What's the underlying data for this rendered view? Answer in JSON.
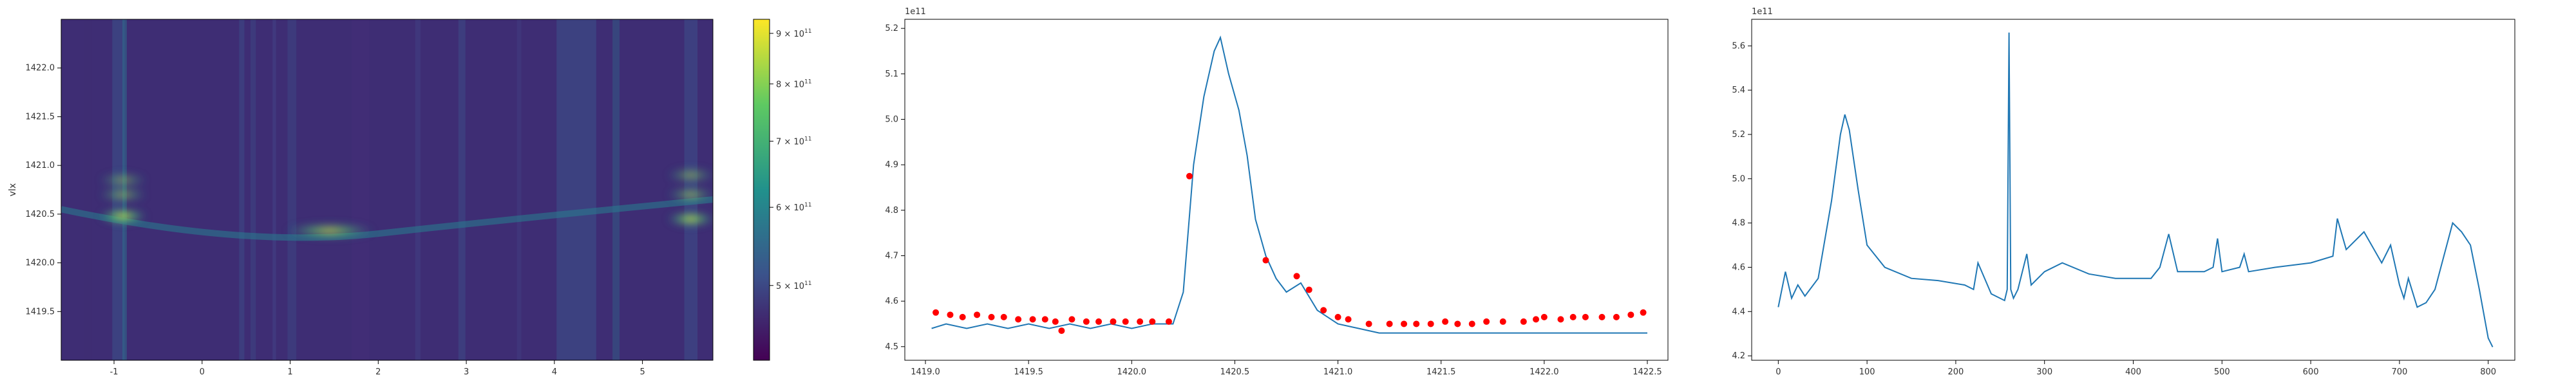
{
  "chart_data": [
    {
      "type": "heatmap",
      "ylabel": "vlx",
      "xlabel": "",
      "xlim": [
        -1.6,
        5.8
      ],
      "ylim": [
        1419.0,
        1422.5
      ],
      "x_ticks": [
        "-1",
        "0",
        "1",
        "2",
        "3",
        "4",
        "5"
      ],
      "y_ticks": [
        "1419.5",
        "1420.0",
        "1420.5",
        "1421.0",
        "1421.5",
        "1422.0"
      ],
      "colorbar": {
        "scale": "log",
        "range": [
          420000000000.0,
          930000000000.0
        ],
        "ticks": [
          {
            "value": 500000000000.0,
            "mant": "5",
            "exp": "11"
          },
          {
            "value": 600000000000.0,
            "mant": "6",
            "exp": "11"
          },
          {
            "value": 700000000000.0,
            "mant": "7",
            "exp": "11"
          },
          {
            "value": 800000000000.0,
            "mant": "8",
            "exp": "11"
          },
          {
            "value": 900000000000.0,
            "mant": "9",
            "exp": "11"
          }
        ],
        "times": "×"
      },
      "features": [
        {
          "x": -0.9,
          "y": 1420.48,
          "intensity": 0.95
        },
        {
          "x": -0.9,
          "y": 1420.7,
          "intensity": 0.55
        },
        {
          "x": -0.9,
          "y": 1420.85,
          "intensity": 0.5
        },
        {
          "x": 1.45,
          "y": 1420.33,
          "intensity": 0.8
        },
        {
          "x": 5.55,
          "y": 1420.45,
          "intensity": 0.9
        },
        {
          "x": 5.55,
          "y": 1420.7,
          "intensity": 0.6
        },
        {
          "x": 5.55,
          "y": 1420.9,
          "intensity": 0.55
        }
      ],
      "colors": {
        "low": "#440154",
        "mid": "#21918c",
        "high": "#fde725"
      }
    },
    {
      "type": "line",
      "offset_label": "1e11",
      "xlim": [
        1418.9,
        1422.6
      ],
      "ylim": [
        4.47,
        5.22
      ],
      "x_ticks": [
        "1419.0",
        "1419.5",
        "1420.0",
        "1420.5",
        "1421.0",
        "1421.5",
        "1422.0",
        "1422.5"
      ],
      "y_ticks": [
        "4.5",
        "4.6",
        "4.7",
        "4.8",
        "4.9",
        "5.0",
        "5.1",
        "5.2"
      ],
      "series": [
        {
          "x": [
            1419.03,
            1419.1,
            1419.2,
            1419.3,
            1419.4,
            1419.5,
            1419.6,
            1419.7,
            1419.8,
            1419.9,
            1420.0,
            1420.1,
            1420.2,
            1420.25,
            1420.3,
            1420.35,
            1420.4,
            1420.43,
            1420.47,
            1420.52,
            1420.56,
            1420.6,
            1420.65,
            1420.7,
            1420.75,
            1420.82,
            1420.9,
            1421.0,
            1421.1,
            1421.2,
            1421.3,
            1421.4,
            1421.5,
            1421.6,
            1421.7,
            1421.8,
            1421.9,
            1422.0,
            1422.1,
            1422.2,
            1422.3,
            1422.4,
            1422.5
          ],
          "y": [
            4.54,
            4.55,
            4.54,
            4.55,
            4.54,
            4.55,
            4.54,
            4.55,
            4.54,
            4.55,
            4.54,
            4.55,
            4.55,
            4.62,
            4.9,
            5.05,
            5.15,
            5.18,
            5.1,
            5.02,
            4.92,
            4.78,
            4.7,
            4.65,
            4.62,
            4.64,
            4.58,
            4.55,
            4.54,
            4.53,
            4.53,
            4.53,
            4.53,
            4.53,
            4.53,
            4.53,
            4.53,
            4.53,
            4.53,
            4.53,
            4.53,
            4.53,
            4.53
          ],
          "color": "#1f77b4"
        }
      ],
      "peaks": {
        "x": [
          1419.05,
          1419.12,
          1419.18,
          1419.25,
          1419.32,
          1419.38,
          1419.45,
          1419.52,
          1419.58,
          1419.63,
          1419.66,
          1419.71,
          1419.78,
          1419.84,
          1419.91,
          1419.97,
          1420.04,
          1420.1,
          1420.18,
          1420.28,
          1420.65,
          1420.8,
          1420.86,
          1420.93,
          1421.0,
          1421.05,
          1421.15,
          1421.25,
          1421.32,
          1421.38,
          1421.45,
          1421.52,
          1421.58,
          1421.65,
          1421.72,
          1421.8,
          1421.9,
          1421.96,
          1422.0,
          1422.08,
          1422.14,
          1422.2,
          1422.28,
          1422.35,
          1422.42,
          1422.48
        ],
        "y": [
          4.575,
          4.57,
          4.565,
          4.57,
          4.565,
          4.565,
          4.56,
          4.56,
          4.56,
          4.555,
          4.535,
          4.56,
          4.555,
          4.555,
          4.555,
          4.555,
          4.555,
          4.555,
          4.555,
          4.875,
          4.69,
          4.655,
          4.625,
          4.58,
          4.565,
          4.56,
          4.55,
          4.55,
          4.55,
          4.55,
          4.55,
          4.555,
          4.55,
          4.55,
          4.555,
          4.555,
          4.555,
          4.56,
          4.565,
          4.56,
          4.565,
          4.565,
          4.565,
          4.565,
          4.57,
          4.575
        ],
        "color": "#ff0000"
      }
    },
    {
      "type": "line",
      "offset_label": "1e11",
      "xlim": [
        -30,
        830
      ],
      "ylim": [
        4.18,
        5.72
      ],
      "x_ticks": [
        "0",
        "100",
        "200",
        "300",
        "400",
        "500",
        "600",
        "700",
        "800"
      ],
      "y_ticks": [
        "4.2",
        "4.4",
        "4.6",
        "4.8",
        "5.0",
        "5.2",
        "5.4",
        "5.6"
      ],
      "series": [
        {
          "x": [
            0,
            8,
            15,
            22,
            30,
            45,
            60,
            70,
            75,
            80,
            90,
            100,
            120,
            150,
            180,
            210,
            220,
            225,
            240,
            255,
            258,
            260,
            262,
            265,
            270,
            280,
            285,
            300,
            320,
            350,
            380,
            420,
            430,
            440,
            450,
            480,
            490,
            495,
            500,
            520,
            525,
            530,
            560,
            600,
            625,
            630,
            640,
            660,
            680,
            690,
            700,
            705,
            710,
            720,
            730,
            740,
            760,
            770,
            780,
            790,
            800,
            805
          ],
          "y": [
            4.42,
            4.58,
            4.46,
            4.52,
            4.47,
            4.55,
            4.9,
            5.2,
            5.29,
            5.22,
            4.95,
            4.7,
            4.6,
            4.55,
            4.54,
            4.52,
            4.5,
            4.62,
            4.48,
            4.45,
            4.5,
            5.66,
            4.5,
            4.46,
            4.5,
            4.66,
            4.52,
            4.58,
            4.62,
            4.57,
            4.55,
            4.55,
            4.6,
            4.75,
            4.58,
            4.58,
            4.6,
            4.73,
            4.58,
            4.6,
            4.66,
            4.58,
            4.6,
            4.62,
            4.65,
            4.82,
            4.68,
            4.76,
            4.62,
            4.7,
            4.52,
            4.46,
            4.55,
            4.42,
            4.44,
            4.5,
            4.8,
            4.76,
            4.7,
            4.5,
            4.28,
            4.24
          ],
          "color": "#1f77b4"
        }
      ]
    }
  ]
}
